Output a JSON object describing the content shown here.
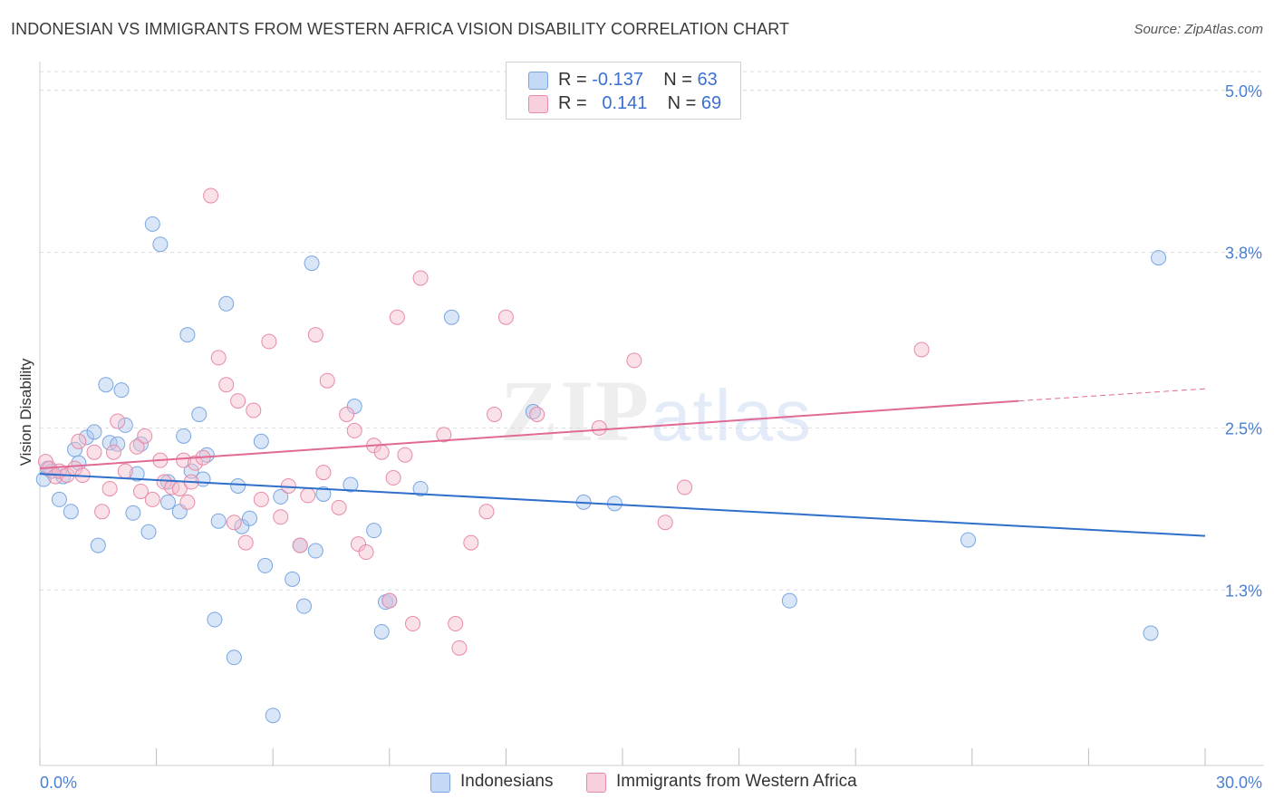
{
  "title": "INDONESIAN VS IMMIGRANTS FROM WESTERN AFRICA VISION DISABILITY CORRELATION CHART",
  "source": "Source: ZipAtlas.com",
  "watermark": {
    "zip": "ZIP",
    "atlas": "atlas"
  },
  "legend": {
    "rows": [
      {
        "r_label": "R =",
        "r_value": "-0.137",
        "n_label": "N =",
        "n_value": "63"
      },
      {
        "r_label": "R =",
        "r_value": "0.141",
        "n_label": "N =",
        "n_value": "69"
      }
    ]
  },
  "colors": {
    "blue_fill": "#aac8f0",
    "blue_stroke": "#7aa6e0",
    "blue_line": "#2e6fcc",
    "pink_fill": "#f5bccd",
    "pink_stroke": "#e88aa8",
    "pink_line": "#e06a94",
    "grid": "#dcdcdc",
    "tick_text": "#4a7fd4"
  },
  "chart_data": {
    "type": "scatter",
    "title": "INDONESIAN VS IMMIGRANTS FROM WESTERN AFRICA VISION DISABILITY CORRELATION CHART",
    "xlabel": "",
    "ylabel": "Vision Disability",
    "xlim": [
      0,
      30
    ],
    "ylim": [
      0,
      5.2
    ],
    "x_tick_labels": [
      "0.0%",
      "30.0%"
    ],
    "y_ticks": [
      1.3,
      2.5,
      3.8,
      5.0
    ],
    "y_tick_labels": [
      "1.3%",
      "2.5%",
      "3.8%",
      "5.0%"
    ],
    "grid": true,
    "series": [
      {
        "name": "Indonesians",
        "color": "#aac8f0",
        "r": -0.137,
        "n": 63,
        "trend": {
          "x0": 0,
          "y0": 2.16,
          "x1": 30,
          "y1": 1.7
        },
        "points": [
          [
            0.1,
            2.12
          ],
          [
            0.2,
            2.2
          ],
          [
            0.3,
            2.18
          ],
          [
            0.5,
            1.97
          ],
          [
            0.6,
            2.14
          ],
          [
            0.8,
            1.88
          ],
          [
            0.9,
            2.34
          ],
          [
            1.0,
            2.24
          ],
          [
            1.2,
            2.43
          ],
          [
            1.4,
            2.47
          ],
          [
            1.5,
            1.63
          ],
          [
            1.7,
            2.82
          ],
          [
            1.8,
            2.39
          ],
          [
            2.0,
            2.38
          ],
          [
            2.1,
            2.78
          ],
          [
            2.2,
            2.52
          ],
          [
            2.4,
            1.87
          ],
          [
            2.5,
            2.16
          ],
          [
            2.6,
            2.38
          ],
          [
            2.8,
            1.73
          ],
          [
            2.9,
            4.01
          ],
          [
            3.1,
            3.86
          ],
          [
            3.3,
            2.1
          ],
          [
            3.3,
            1.95
          ],
          [
            3.6,
            1.88
          ],
          [
            3.7,
            2.44
          ],
          [
            3.8,
            3.19
          ],
          [
            3.9,
            2.18
          ],
          [
            4.1,
            2.6
          ],
          [
            4.2,
            2.12
          ],
          [
            4.3,
            2.3
          ],
          [
            4.5,
            1.08
          ],
          [
            4.6,
            1.81
          ],
          [
            4.8,
            3.42
          ],
          [
            5.0,
            0.8
          ],
          [
            5.1,
            2.07
          ],
          [
            5.2,
            1.77
          ],
          [
            5.4,
            1.83
          ],
          [
            5.7,
            2.4
          ],
          [
            5.8,
            1.48
          ],
          [
            6.0,
            0.37
          ],
          [
            6.2,
            1.99
          ],
          [
            6.5,
            1.38
          ],
          [
            6.7,
            1.63
          ],
          [
            6.8,
            1.18
          ],
          [
            7.0,
            3.72
          ],
          [
            7.1,
            1.59
          ],
          [
            7.3,
            2.01
          ],
          [
            8.0,
            2.08
          ],
          [
            8.1,
            2.66
          ],
          [
            8.6,
            1.74
          ],
          [
            8.8,
            0.99
          ],
          [
            8.9,
            1.21
          ],
          [
            9.0,
            1.22
          ],
          [
            9.8,
            2.05
          ],
          [
            10.6,
            3.32
          ],
          [
            12.7,
            2.62
          ],
          [
            14.0,
            1.95
          ],
          [
            14.8,
            1.94
          ],
          [
            19.3,
            1.22
          ],
          [
            23.9,
            1.67
          ],
          [
            28.6,
            0.98
          ],
          [
            28.8,
            3.76
          ]
        ]
      },
      {
        "name": "Immigrants from Western Africa",
        "color": "#f5bccd",
        "r": 0.141,
        "n": 69,
        "trend": {
          "x0": 0,
          "y0": 2.2,
          "x1": 25.2,
          "y1": 2.7
        },
        "trend_dashed": {
          "x0": 25.2,
          "y0": 2.7,
          "x1": 30,
          "y1": 2.79
        },
        "points": [
          [
            0.15,
            2.25
          ],
          [
            0.25,
            2.2
          ],
          [
            0.4,
            2.14
          ],
          [
            0.5,
            2.18
          ],
          [
            0.7,
            2.15
          ],
          [
            0.9,
            2.2
          ],
          [
            1.0,
            2.4
          ],
          [
            1.1,
            2.15
          ],
          [
            1.4,
            2.32
          ],
          [
            1.6,
            1.88
          ],
          [
            1.8,
            2.05
          ],
          [
            1.9,
            2.32
          ],
          [
            2.0,
            2.55
          ],
          [
            2.2,
            2.18
          ],
          [
            2.5,
            2.36
          ],
          [
            2.6,
            2.03
          ],
          [
            2.7,
            2.44
          ],
          [
            2.9,
            1.97
          ],
          [
            3.1,
            2.26
          ],
          [
            3.2,
            2.1
          ],
          [
            3.4,
            2.06
          ],
          [
            3.6,
            2.05
          ],
          [
            3.7,
            2.26
          ],
          [
            3.8,
            1.95
          ],
          [
            3.9,
            2.1
          ],
          [
            4.0,
            2.24
          ],
          [
            4.2,
            2.28
          ],
          [
            4.4,
            4.22
          ],
          [
            4.6,
            3.02
          ],
          [
            4.8,
            2.82
          ],
          [
            5.0,
            1.8
          ],
          [
            5.1,
            2.7
          ],
          [
            5.3,
            1.65
          ],
          [
            5.5,
            2.63
          ],
          [
            5.7,
            1.97
          ],
          [
            5.9,
            3.14
          ],
          [
            6.2,
            1.84
          ],
          [
            6.4,
            2.07
          ],
          [
            6.7,
            1.63
          ],
          [
            6.9,
            2.0
          ],
          [
            7.1,
            3.19
          ],
          [
            7.3,
            2.17
          ],
          [
            7.4,
            2.85
          ],
          [
            7.7,
            1.91
          ],
          [
            7.9,
            2.6
          ],
          [
            8.1,
            2.48
          ],
          [
            8.2,
            1.64
          ],
          [
            8.4,
            1.58
          ],
          [
            8.6,
            2.37
          ],
          [
            8.8,
            2.32
          ],
          [
            9.0,
            1.22
          ],
          [
            9.1,
            2.13
          ],
          [
            9.2,
            3.32
          ],
          [
            9.4,
            2.3
          ],
          [
            9.6,
            1.05
          ],
          [
            9.8,
            3.61
          ],
          [
            10.4,
            2.45
          ],
          [
            10.7,
            1.05
          ],
          [
            10.8,
            0.87
          ],
          [
            11.1,
            1.65
          ],
          [
            11.5,
            1.88
          ],
          [
            11.7,
            2.6
          ],
          [
            12.0,
            3.32
          ],
          [
            12.8,
            2.6
          ],
          [
            14.4,
            2.5
          ],
          [
            15.3,
            3.0
          ],
          [
            16.1,
            1.8
          ],
          [
            16.6,
            2.06
          ],
          [
            22.7,
            3.08
          ]
        ]
      }
    ]
  },
  "bottom_legend": {
    "series1": "Indonesians",
    "series2": "Immigrants from Western Africa"
  },
  "ylabel": "Vision Disability"
}
